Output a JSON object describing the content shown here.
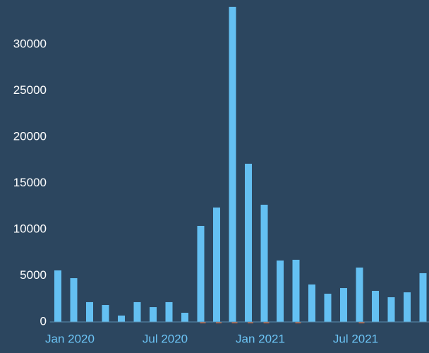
{
  "chart_data": {
    "type": "bar",
    "categories": [
      "Jan 2020",
      null,
      null,
      null,
      null,
      null,
      "Jul 2020",
      null,
      null,
      null,
      null,
      null,
      "Jan 2021",
      null,
      null,
      null,
      null,
      null,
      "Jul 2021",
      null,
      null,
      null,
      null,
      null
    ],
    "series": [
      {
        "color": "#64c0f2",
        "values": [
          5570,
          4730,
          2140,
          1830,
          690,
          2140,
          1600,
          2140,
          990,
          10380,
          12370,
          34050,
          17100,
          12670,
          6640,
          6720,
          4050,
          3050,
          3660,
          5880,
          3360,
          2670,
          3200,
          5270
        ]
      },
      {
        "color": "#c8643c",
        "values": [
          0,
          0,
          0,
          0,
          0,
          0,
          0,
          0,
          0,
          -150,
          -150,
          -150,
          -150,
          -150,
          0,
          -150,
          0,
          0,
          0,
          -150,
          0,
          0,
          0,
          0
        ]
      }
    ],
    "ylim": [
      0,
      34800
    ],
    "yticks": [
      0,
      5000,
      10000,
      15000,
      20000,
      25000,
      30000
    ]
  }
}
